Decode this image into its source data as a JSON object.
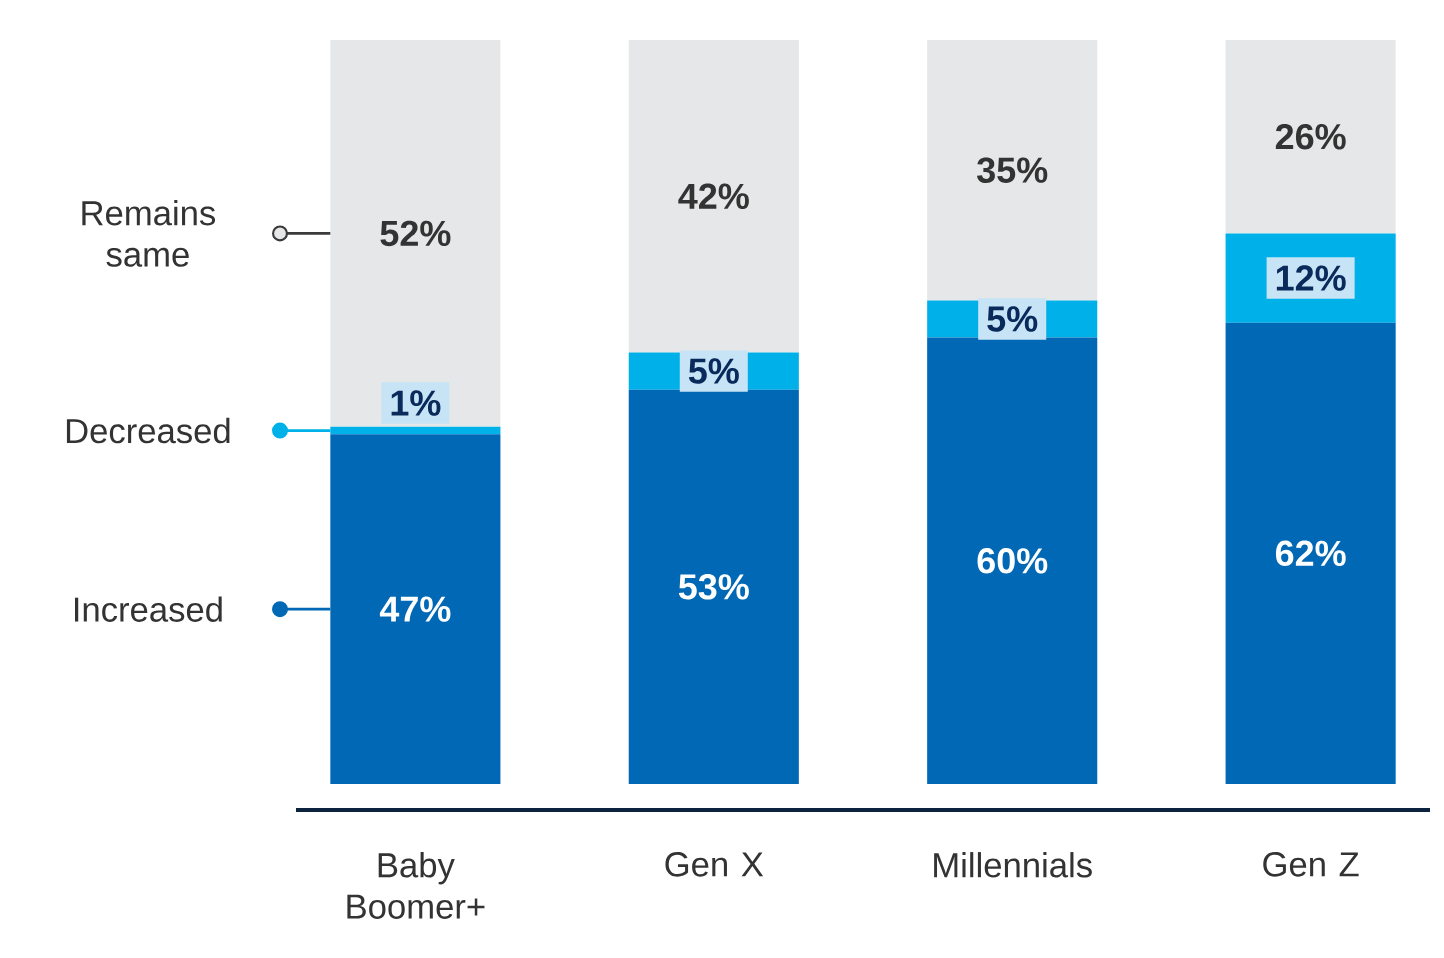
{
  "chart_data": {
    "type": "bar",
    "stacked": true,
    "categories": [
      "Baby Boomer+",
      "Gen X",
      "Millennials",
      "Gen Z"
    ],
    "ylim": [
      0,
      100
    ],
    "tick_labels": "x",
    "legend": "left",
    "series": [
      {
        "name": "Increased",
        "color": "#0068b5",
        "values": [
          47,
          53,
          60,
          62
        ],
        "value_labels": [
          "47%",
          "53%",
          "60%",
          "62%"
        ]
      },
      {
        "name": "Decreased",
        "color": "#00b0e8",
        "values": [
          1,
          5,
          5,
          12
        ],
        "value_labels": [
          "1%",
          "5%",
          "5%",
          "12%"
        ]
      },
      {
        "name": "Remains same",
        "color": "#e6e7e8",
        "values": [
          52,
          42,
          35,
          26
        ],
        "value_labels": [
          "52%",
          "42%",
          "35%",
          "26%"
        ]
      }
    ]
  }
}
